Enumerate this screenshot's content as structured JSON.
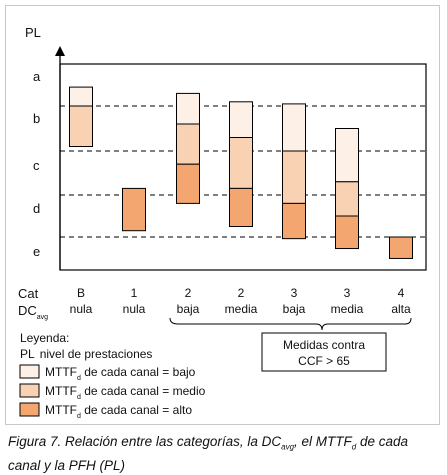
{
  "axis": {
    "y_title": "PL",
    "levels": [
      "a",
      "b",
      "c",
      "d",
      "e"
    ]
  },
  "x_header": {
    "cat": "Cat",
    "dc_main": "DC",
    "dc_sub": "avg"
  },
  "colors": {
    "bajo": "#fdf0e6",
    "medio": "#f9d2b4",
    "alto": "#f3a66f",
    "stroke": "#000000"
  },
  "columns": [
    {
      "cat": "B",
      "dc": "nula",
      "segments": [
        {
          "level": "bajo",
          "from": 0.55,
          "to": 1.0
        },
        {
          "level": "medio",
          "from": 1.0,
          "to": 1.9
        }
      ]
    },
    {
      "cat": "1",
      "dc": "nula",
      "segments": [
        {
          "level": "alto",
          "from": 2.85,
          "to": 3.85
        }
      ]
    },
    {
      "cat": "2",
      "dc": "baja",
      "segments": [
        {
          "level": "bajo",
          "from": 0.7,
          "to": 1.4
        },
        {
          "level": "medio",
          "from": 1.4,
          "to": 2.3
        },
        {
          "level": "alto",
          "from": 2.3,
          "to": 3.2
        }
      ]
    },
    {
      "cat": "2",
      "dc": "media",
      "segments": [
        {
          "level": "bajo",
          "from": 0.9,
          "to": 1.7
        },
        {
          "level": "medio",
          "from": 1.7,
          "to": 2.85
        },
        {
          "level": "alto",
          "from": 2.85,
          "to": 3.75
        }
      ]
    },
    {
      "cat": "3",
      "dc": "baja",
      "segments": [
        {
          "level": "bajo",
          "from": 0.95,
          "to": 2.0
        },
        {
          "level": "medio",
          "from": 2.0,
          "to": 3.2
        },
        {
          "level": "alto",
          "from": 3.2,
          "to": 4.05
        }
      ]
    },
    {
      "cat": "3",
      "dc": "media",
      "segments": [
        {
          "level": "bajo",
          "from": 1.5,
          "to": 2.7
        },
        {
          "level": "medio",
          "from": 2.7,
          "to": 3.5
        },
        {
          "level": "alto",
          "from": 3.5,
          "to": 4.35
        }
      ]
    },
    {
      "cat": "4",
      "dc": "alta",
      "segments": [
        {
          "level": "alto",
          "from": 4.0,
          "to": 4.65
        }
      ]
    }
  ],
  "ccf_box": {
    "line1": "Medidas contra",
    "line2": "CCF > 65"
  },
  "legend": {
    "title": "Leyenda:",
    "pl_key": "PL",
    "pl_desc": "nivel de prestaciones",
    "mttf_main": "MTTF",
    "mttf_sub": "d",
    "items": [
      {
        "level": "bajo",
        "text": " de cada canal = bajo"
      },
      {
        "level": "medio",
        "text": " de cada canal = medio"
      },
      {
        "level": "alto",
        "text": " de cada canal = alto"
      }
    ]
  },
  "caption": {
    "part1": "Figura 7. Relación entre las categorías, la DC",
    "sub1": "avg",
    "part2": ", el MTTF",
    "sub2": "d",
    "part3": " de cada canal y la PFH (PL)"
  }
}
